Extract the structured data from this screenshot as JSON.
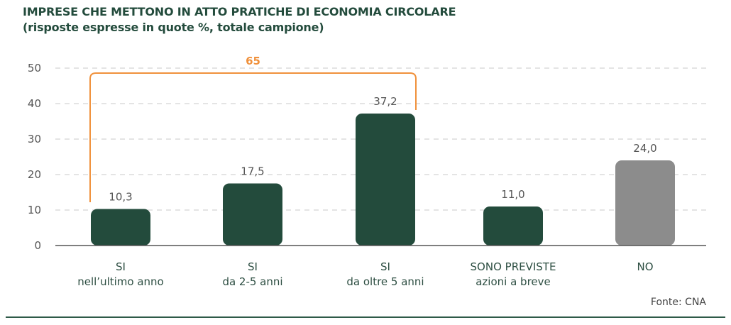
{
  "title": "IMPRESE CHE METTONO IN ATTO PRATICHE DI ECONOMIA CIRCOLARE",
  "subtitle": "(risposte espresse in quote %, totale campione)",
  "source": "Fonte: CNA",
  "colors": {
    "bar": "#234b3c",
    "bar_no": "#8c8c8c",
    "bracket": "#f0913c",
    "text": "#234b3c"
  },
  "chart_data": {
    "type": "bar",
    "categories": [
      [
        "SI",
        "nell’ultimo anno"
      ],
      [
        "SI",
        "da 2-5 anni"
      ],
      [
        "SI",
        "da oltre 5 anni"
      ],
      [
        "SONO PREVISTE",
        "azioni a breve"
      ],
      [
        "NO"
      ]
    ],
    "values": [
      10.3,
      17.5,
      37.2,
      11.0,
      24.0
    ],
    "value_labels": [
      "10,3",
      "17,5",
      "37,2",
      "11,0",
      "24,0"
    ],
    "bar_colors": [
      "#234b3c",
      "#234b3c",
      "#234b3c",
      "#234b3c",
      "#8c8c8c"
    ],
    "ylim": [
      0,
      50
    ],
    "yticks": [
      0,
      10,
      20,
      30,
      40,
      50
    ],
    "grid": true,
    "annotation": {
      "label": "65",
      "spans_categories": [
        0,
        2
      ]
    }
  }
}
